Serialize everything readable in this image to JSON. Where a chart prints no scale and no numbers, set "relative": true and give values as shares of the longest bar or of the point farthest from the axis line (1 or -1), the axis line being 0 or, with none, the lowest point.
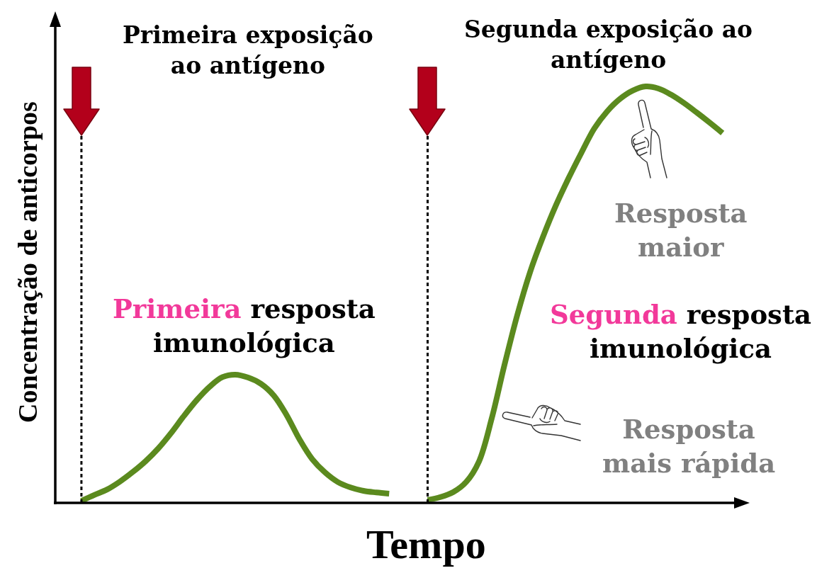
{
  "chart_data": {
    "type": "line",
    "relative": true,
    "xlabel": "Tempo",
    "ylabel": "Concentração de anticorpos",
    "categories": [
      null,
      null,
      null,
      null,
      null,
      null,
      null,
      null,
      null,
      null,
      null,
      null,
      null,
      null,
      null,
      null,
      null,
      null,
      null,
      null,
      null,
      null,
      null,
      null,
      null,
      null,
      null,
      null,
      null,
      null,
      null,
      null,
      null,
      null,
      null,
      null,
      null,
      null,
      null,
      null,
      null,
      null,
      null,
      null,
      null,
      null,
      null,
      null,
      null,
      null,
      null
    ],
    "series": [
      {
        "color": "#5b8a1e",
        "values": [
          0.005,
          0.019,
          0.032,
          0.051,
          0.074,
          0.1,
          0.131,
          0.168,
          0.209,
          0.247,
          0.279,
          0.302,
          0.308,
          0.301,
          0.286,
          0.258,
          0.211,
          0.153,
          0.105,
          0.073,
          0.05,
          0.037,
          0.029,
          0.025,
          0.022,
          null,
          null,
          null,
          null,
          null,
          null,
          null,
          null,
          null,
          null,
          null,
          null,
          null,
          null,
          null,
          null,
          null,
          null,
          null,
          null,
          null,
          null,
          null,
          null,
          null,
          null
        ]
      },
      {
        "color": "#5b8a1e",
        "values": [
          null,
          null,
          null,
          null,
          null,
          null,
          null,
          null,
          null,
          null,
          null,
          null,
          null,
          null,
          null,
          null,
          null,
          null,
          null,
          null,
          null,
          null,
          null,
          null,
          null,
          null,
          null,
          0.007,
          0.014,
          0.026,
          0.05,
          0.099,
          0.203,
          0.332,
          0.452,
          0.555,
          0.639,
          0.714,
          0.78,
          0.841,
          0.899,
          0.94,
          0.97,
          0.99,
          1.0,
          0.995,
          0.98,
          0.96,
          0.937,
          0.913,
          0.888
        ]
      }
    ],
    "annotations": [
      "Primeira exposição ao antígeno",
      "Segunda exposição ao antígeno",
      "Primeira resposta imunológica",
      "Resposta maior",
      "Segunda resposta imunológica",
      "Resposta mais rápida"
    ]
  }
}
